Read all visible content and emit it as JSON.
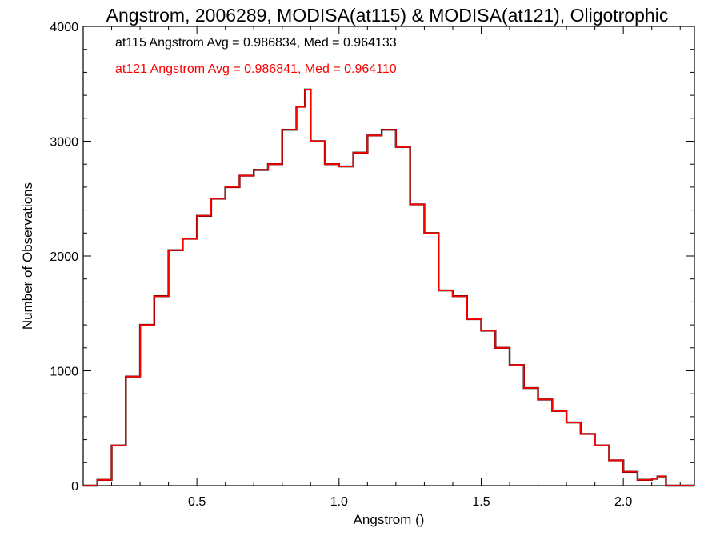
{
  "chart_data": {
    "type": "line",
    "title": "Angstrom, 2006289, MODISA(at115) & MODISA(at121), Oligotrophic",
    "xlabel": "Angstrom ()",
    "ylabel": "Number of Observations",
    "xlim": [
      0.1,
      2.25
    ],
    "ylim": [
      0,
      4000
    ],
    "xticks": [
      0.5,
      1.0,
      1.5,
      2.0
    ],
    "xtick_labels": [
      "0.5",
      "1.0",
      "1.5",
      "2.0"
    ],
    "yticks": [
      0,
      1000,
      2000,
      3000,
      4000
    ],
    "ytick_labels": [
      "0",
      "1000",
      "2000",
      "3000",
      "4000"
    ],
    "grid": false,
    "step": true,
    "x": [
      0.1,
      0.15,
      0.2,
      0.25,
      0.3,
      0.35,
      0.4,
      0.45,
      0.5,
      0.55,
      0.6,
      0.65,
      0.7,
      0.75,
      0.8,
      0.85,
      0.88,
      0.9,
      0.95,
      1.0,
      1.05,
      1.1,
      1.15,
      1.2,
      1.25,
      1.3,
      1.35,
      1.4,
      1.45,
      1.5,
      1.55,
      1.6,
      1.65,
      1.7,
      1.75,
      1.8,
      1.85,
      1.9,
      1.95,
      2.0,
      2.05,
      2.1,
      2.12,
      2.15,
      2.2,
      2.25
    ],
    "series": [
      {
        "name": "at115",
        "color": "#000000",
        "values": [
          0,
          50,
          350,
          950,
          1400,
          1650,
          2050,
          2150,
          2350,
          2500,
          2600,
          2700,
          2750,
          2800,
          3100,
          3300,
          3450,
          3000,
          2800,
          2780,
          2900,
          3050,
          3100,
          2950,
          2450,
          2200,
          1700,
          1650,
          1450,
          1350,
          1200,
          1050,
          850,
          750,
          650,
          550,
          450,
          350,
          220,
          120,
          50,
          60,
          80,
          0,
          0,
          0
        ]
      },
      {
        "name": "at121",
        "color": "#ff0000",
        "values": [
          0,
          50,
          350,
          950,
          1400,
          1650,
          2050,
          2150,
          2350,
          2500,
          2600,
          2700,
          2750,
          2800,
          3100,
          3300,
          3450,
          3000,
          2800,
          2780,
          2900,
          3050,
          3100,
          2950,
          2450,
          2200,
          1700,
          1650,
          1450,
          1350,
          1200,
          1050,
          850,
          750,
          650,
          550,
          450,
          350,
          220,
          120,
          50,
          60,
          80,
          0,
          0,
          0
        ]
      }
    ],
    "annotations": [
      {
        "text": "at115 Angstrom Avg = 0.986834, Med = 0.964133",
        "color": "#000000"
      },
      {
        "text": "at121 Angstrom Avg = 0.986841, Med = 0.964110",
        "color": "#ff0000"
      }
    ]
  }
}
